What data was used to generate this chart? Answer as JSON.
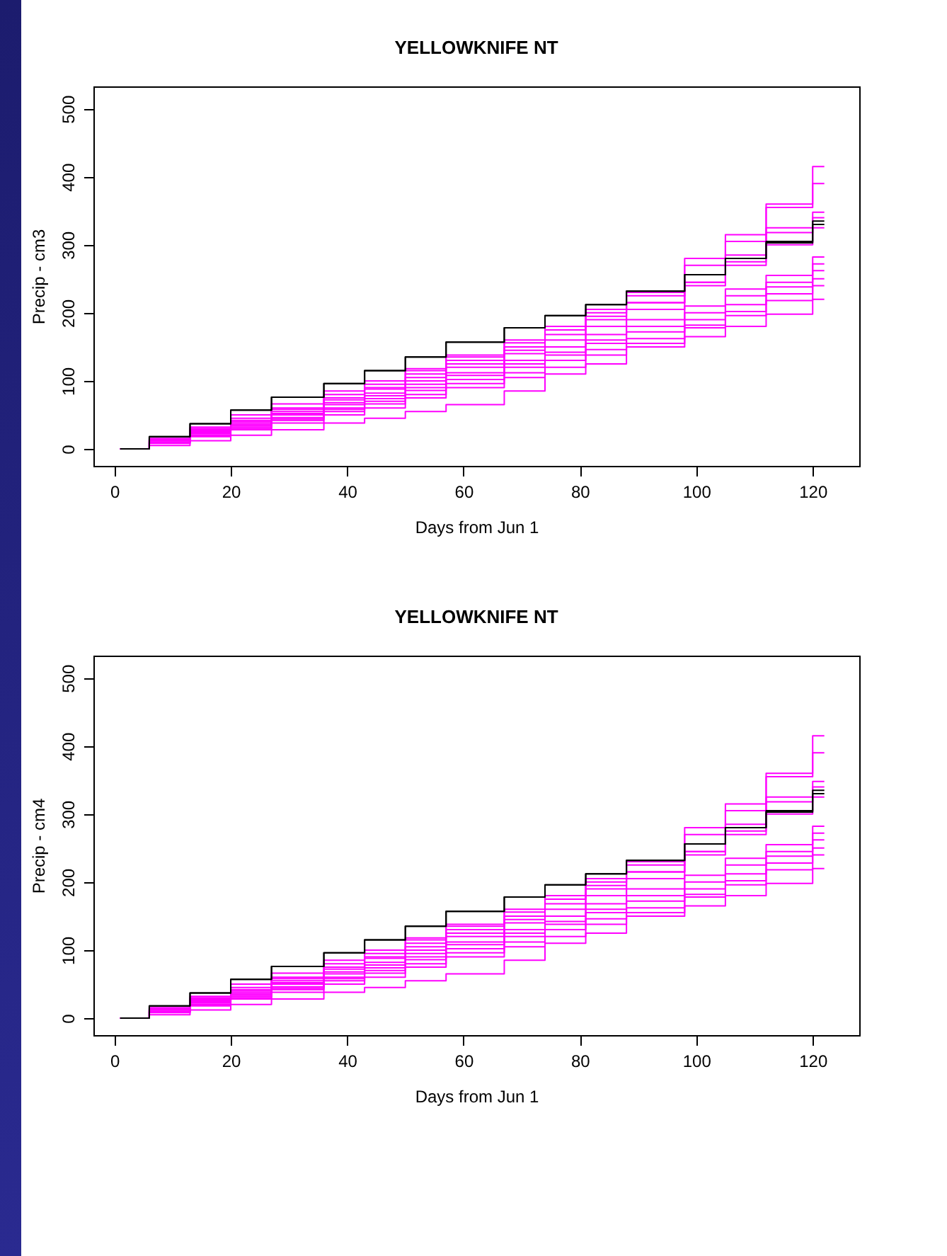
{
  "chart_data": [
    {
      "type": "step",
      "title": "YELLOWKNIFE  NT",
      "xlabel": "Days from Jun 1",
      "ylabel": "Precip - cm3",
      "x": [
        1,
        6,
        13,
        20,
        27,
        36,
        43,
        50,
        57,
        67,
        74,
        81,
        88,
        98,
        105,
        112,
        120,
        122
      ],
      "xlim": [
        -3.6,
        128
      ],
      "xticks": [
        0,
        20,
        40,
        60,
        80,
        100,
        120
      ],
      "ylim": [
        -25,
        533
      ],
      "yticks": [
        0,
        100,
        200,
        300,
        400,
        500
      ],
      "grid": false,
      "legend": false,
      "series": [
        {
          "color": "#ff00ff",
          "values": [
            0,
            15,
            30,
            45,
            60,
            80,
            95,
            115,
            135,
            160,
            180,
            205,
            230,
            280,
            315,
            360,
            415,
            415
          ]
        },
        {
          "color": "#ff00ff",
          "values": [
            0,
            14,
            28,
            42,
            58,
            75,
            90,
            110,
            130,
            150,
            175,
            200,
            225,
            270,
            305,
            355,
            390,
            390
          ]
        },
        {
          "color": "#ff00ff",
          "values": [
            0,
            13,
            27,
            40,
            55,
            72,
            88,
            105,
            125,
            145,
            168,
            190,
            215,
            245,
            285,
            325,
            348,
            348
          ]
        },
        {
          "color": "#ff00ff",
          "values": [
            0,
            12,
            25,
            38,
            52,
            68,
            82,
            100,
            120,
            140,
            160,
            180,
            205,
            240,
            275,
            318,
            340,
            340
          ]
        },
        {
          "color": "#ff00ff",
          "values": [
            0,
            15,
            32,
            50,
            66,
            85,
            100,
            118,
            138,
            156,
            175,
            195,
            215,
            245,
            270,
            300,
            325,
            325
          ]
        },
        {
          "color": "#ff00ff",
          "values": [
            0,
            12,
            24,
            36,
            50,
            65,
            78,
            95,
            112,
            130,
            150,
            168,
            190,
            210,
            235,
            255,
            282,
            282
          ]
        },
        {
          "color": "#ff00ff",
          "values": [
            0,
            10,
            22,
            34,
            46,
            60,
            74,
            90,
            108,
            125,
            142,
            160,
            180,
            200,
            225,
            245,
            272,
            272
          ]
        },
        {
          "color": "#ff00ff",
          "values": [
            0,
            10,
            20,
            32,
            44,
            58,
            70,
            86,
            102,
            120,
            138,
            155,
            172,
            190,
            212,
            238,
            262,
            262
          ]
        },
        {
          "color": "#ff00ff",
          "values": [
            0,
            9,
            19,
            30,
            42,
            55,
            66,
            80,
            96,
            112,
            130,
            146,
            162,
            182,
            202,
            228,
            250,
            250
          ]
        },
        {
          "color": "#ff00ff",
          "values": [
            0,
            8,
            18,
            28,
            38,
            50,
            60,
            75,
            90,
            105,
            120,
            138,
            155,
            178,
            196,
            218,
            240,
            240
          ]
        },
        {
          "color": "#ff00ff",
          "values": [
            0,
            5,
            12,
            20,
            28,
            38,
            45,
            55,
            65,
            85,
            110,
            125,
            150,
            165,
            180,
            198,
            220,
            220
          ]
        },
        {
          "color": "#000000",
          "values": [
            0,
            18,
            37,
            57,
            76,
            96,
            115,
            135,
            157,
            178,
            196,
            212,
            232,
            256,
            280,
            303,
            330,
            330
          ]
        },
        {
          "color": "#000000",
          "values": [
            0,
            18,
            37,
            57,
            76,
            96,
            115,
            135,
            157,
            178,
            196,
            212,
            232,
            256,
            280,
            305,
            335,
            335
          ]
        }
      ]
    },
    {
      "type": "step",
      "title": "YELLOWKNIFE  NT",
      "xlabel": "Days from Jun 1",
      "ylabel": "Precip - cm4",
      "x": [
        1,
        6,
        13,
        20,
        27,
        36,
        43,
        50,
        57,
        67,
        74,
        81,
        88,
        98,
        105,
        112,
        120,
        122
      ],
      "xlim": [
        -3.6,
        128
      ],
      "xticks": [
        0,
        20,
        40,
        60,
        80,
        100,
        120
      ],
      "ylim": [
        -25,
        533
      ],
      "yticks": [
        0,
        100,
        200,
        300,
        400,
        500
      ],
      "grid": false,
      "legend": false,
      "series": [
        {
          "color": "#ff00ff",
          "values": [
            0,
            15,
            30,
            45,
            60,
            80,
            95,
            115,
            135,
            160,
            180,
            205,
            230,
            280,
            315,
            360,
            415,
            415
          ]
        },
        {
          "color": "#ff00ff",
          "values": [
            0,
            14,
            28,
            42,
            58,
            75,
            90,
            110,
            130,
            150,
            175,
            200,
            225,
            270,
            305,
            355,
            390,
            390
          ]
        },
        {
          "color": "#ff00ff",
          "values": [
            0,
            13,
            27,
            40,
            55,
            72,
            88,
            105,
            125,
            145,
            168,
            190,
            215,
            245,
            285,
            325,
            348,
            348
          ]
        },
        {
          "color": "#ff00ff",
          "values": [
            0,
            12,
            25,
            38,
            52,
            68,
            82,
            100,
            120,
            140,
            160,
            180,
            205,
            240,
            275,
            318,
            340,
            340
          ]
        },
        {
          "color": "#ff00ff",
          "values": [
            0,
            15,
            32,
            50,
            66,
            85,
            100,
            118,
            138,
            156,
            175,
            195,
            215,
            245,
            270,
            300,
            325,
            325
          ]
        },
        {
          "color": "#ff00ff",
          "values": [
            0,
            12,
            24,
            36,
            50,
            65,
            78,
            95,
            112,
            130,
            150,
            168,
            190,
            210,
            235,
            255,
            282,
            282
          ]
        },
        {
          "color": "#ff00ff",
          "values": [
            0,
            10,
            22,
            34,
            46,
            60,
            74,
            90,
            108,
            125,
            142,
            160,
            180,
            200,
            225,
            245,
            272,
            272
          ]
        },
        {
          "color": "#ff00ff",
          "values": [
            0,
            10,
            20,
            32,
            44,
            58,
            70,
            86,
            102,
            120,
            138,
            155,
            172,
            190,
            212,
            238,
            262,
            262
          ]
        },
        {
          "color": "#ff00ff",
          "values": [
            0,
            9,
            19,
            30,
            42,
            55,
            66,
            80,
            96,
            112,
            130,
            146,
            162,
            182,
            202,
            228,
            250,
            250
          ]
        },
        {
          "color": "#ff00ff",
          "values": [
            0,
            8,
            18,
            28,
            38,
            50,
            60,
            75,
            90,
            105,
            120,
            138,
            155,
            178,
            196,
            218,
            240,
            240
          ]
        },
        {
          "color": "#ff00ff",
          "values": [
            0,
            5,
            12,
            20,
            28,
            38,
            45,
            55,
            65,
            85,
            110,
            125,
            150,
            165,
            180,
            198,
            220,
            220
          ]
        },
        {
          "color": "#000000",
          "values": [
            0,
            18,
            37,
            57,
            76,
            96,
            115,
            135,
            157,
            178,
            196,
            212,
            232,
            256,
            280,
            303,
            330,
            330
          ]
        },
        {
          "color": "#000000",
          "values": [
            0,
            18,
            37,
            57,
            76,
            96,
            115,
            135,
            157,
            178,
            196,
            212,
            232,
            256,
            280,
            305,
            335,
            335
          ]
        }
      ]
    }
  ]
}
